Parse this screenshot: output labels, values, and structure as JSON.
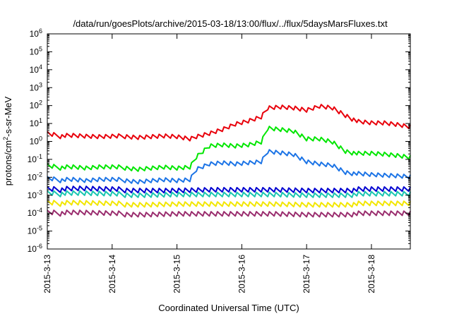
{
  "chart_data": {
    "type": "line",
    "title": "/data/run/goesPlots/archive/2015-03-18/13:00/flux/../flux/5daysMarsFluxes.txt",
    "xlabel": "Coordinated Universal Time (UTC)",
    "ylabel_pre": "protons/cm",
    "ylabel_sup": "2",
    "ylabel_post": "-s-sr-MeV",
    "y_scale": "log",
    "ylim_exponents": [
      -6,
      6
    ],
    "x_unit": "days",
    "xlim": [
      0,
      5.6
    ],
    "x_ticks": [
      {
        "x": 0,
        "label": "2015-3-13"
      },
      {
        "x": 1,
        "label": "2015-3-14"
      },
      {
        "x": 2,
        "label": "2015-3-15"
      },
      {
        "x": 3,
        "label": "2015-3-16"
      },
      {
        "x": 4,
        "label": "2015-3-17"
      },
      {
        "x": 5,
        "label": "2015-3-18"
      }
    ],
    "y_ticks": [
      {
        "base": "10",
        "exp": "-6"
      },
      {
        "base": "10",
        "exp": "-5"
      },
      {
        "base": "10",
        "exp": "-4"
      },
      {
        "base": "10",
        "exp": "-3"
      },
      {
        "base": "10",
        "exp": "-2"
      },
      {
        "base": "10",
        "exp": "-1"
      },
      {
        "base": "10",
        "exp": "0"
      },
      {
        "base": "10",
        "exp": "1"
      },
      {
        "base": "10",
        "exp": "2"
      },
      {
        "base": "10",
        "exp": "3"
      },
      {
        "base": "10",
        "exp": "4"
      },
      {
        "base": "10",
        "exp": "5"
      },
      {
        "base": "10",
        "exp": "6"
      }
    ],
    "grid": false,
    "legend": "none",
    "series": [
      {
        "color": "#e8000b",
        "x": [
          0,
          0.2,
          0.4,
          0.6,
          0.8,
          1.0,
          1.2,
          1.4,
          1.6,
          1.8,
          2.0,
          2.2,
          2.3,
          2.5,
          2.7,
          2.9,
          3.1,
          3.3,
          3.4,
          3.6,
          3.8,
          4.0,
          4.2,
          4.4,
          4.6,
          4.8,
          5.0,
          5.2,
          5.4,
          5.6
        ],
        "y": [
          2.5,
          2.0,
          2.0,
          1.8,
          1.7,
          1.8,
          2.0,
          1.8,
          2.0,
          2.2,
          2.0,
          1.5,
          2.0,
          3,
          5,
          10,
          15,
          25,
          80,
          90,
          80,
          60,
          100,
          80,
          30,
          12,
          10,
          10,
          8,
          6
        ]
      },
      {
        "color": "#00e600",
        "x": [
          0,
          0.2,
          0.4,
          0.6,
          0.8,
          1.0,
          1.2,
          1.4,
          1.6,
          1.8,
          2.0,
          2.2,
          2.3,
          2.5,
          2.7,
          2.9,
          3.1,
          3.3,
          3.4,
          3.6,
          3.8,
          4.0,
          4.2,
          4.4,
          4.6,
          4.8,
          5.0,
          5.2,
          5.4,
          5.6
        ],
        "y": [
          0.04,
          0.035,
          0.035,
          0.03,
          0.035,
          0.035,
          0.035,
          0.03,
          0.035,
          0.04,
          0.035,
          0.04,
          0.15,
          0.6,
          0.7,
          0.6,
          0.7,
          1.0,
          6,
          5,
          4,
          1.5,
          1.5,
          1.0,
          0.3,
          0.2,
          0.2,
          0.18,
          0.15,
          0.12
        ]
      },
      {
        "color": "#1c74e6",
        "x": [
          0,
          0.2,
          0.4,
          0.6,
          0.8,
          1.0,
          1.2,
          1.4,
          1.6,
          1.8,
          2.0,
          2.2,
          2.3,
          2.5,
          2.7,
          2.9,
          3.1,
          3.3,
          3.4,
          3.6,
          3.8,
          4.0,
          4.2,
          4.4,
          4.6,
          4.8,
          5.0,
          5.2,
          5.4,
          5.6
        ],
        "y": [
          0.008,
          0.007,
          0.007,
          0.006,
          0.007,
          0.007,
          0.007,
          0.006,
          0.007,
          0.008,
          0.007,
          0.008,
          0.03,
          0.06,
          0.07,
          0.06,
          0.07,
          0.08,
          0.3,
          0.25,
          0.2,
          0.08,
          0.06,
          0.05,
          0.02,
          0.015,
          0.013,
          0.012,
          0.011,
          0.01
        ]
      },
      {
        "color": "#0000d0",
        "x": [
          0,
          0.5,
          1.0,
          1.5,
          2.0,
          2.5,
          3.0,
          3.5,
          4.0,
          4.5,
          5.0,
          5.6
        ],
        "y": [
          0.002,
          0.0022,
          0.002,
          0.002,
          0.002,
          0.0022,
          0.0022,
          0.0022,
          0.002,
          0.002,
          0.002,
          0.002
        ]
      },
      {
        "color": "#1ac6b0",
        "x": [
          0,
          0.5,
          1.0,
          1.5,
          2.0,
          2.5,
          3.0,
          3.5,
          4.0,
          4.5,
          5.0,
          5.6
        ],
        "y": [
          0.0012,
          0.0012,
          0.0011,
          0.0011,
          0.0012,
          0.0012,
          0.0012,
          0.0012,
          0.0011,
          0.0011,
          0.0011,
          0.0011
        ]
      },
      {
        "color": "#f2e600",
        "x": [
          0,
          0.5,
          1.0,
          1.5,
          2.0,
          2.5,
          3.0,
          3.5,
          4.0,
          4.5,
          5.0,
          5.6
        ],
        "y": [
          0.00035,
          0.00035,
          0.00032,
          0.00032,
          0.00035,
          0.00035,
          0.00035,
          0.00035,
          0.00032,
          0.00032,
          0.00032,
          0.00032
        ]
      },
      {
        "color": "#9a2d6e",
        "x": [
          0,
          0.5,
          1.0,
          1.5,
          2.0,
          2.5,
          3.0,
          3.5,
          4.0,
          4.5,
          5.0,
          5.6
        ],
        "y": [
          0.0001,
          0.0001,
          9e-05,
          9e-05,
          0.0001,
          0.0001,
          0.0001,
          0.0001,
          9e-05,
          9e-05,
          9e-05,
          9e-05
        ]
      }
    ]
  }
}
